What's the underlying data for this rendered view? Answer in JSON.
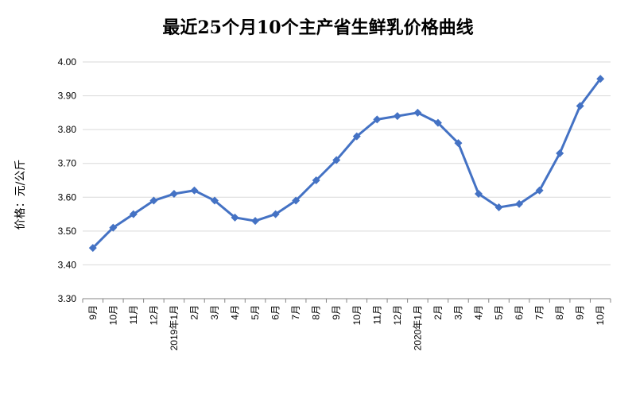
{
  "chart_data": {
    "type": "line",
    "title": "最近25个月10个主产省生鲜乳价格曲线",
    "ylabel": "价格：元/公斤",
    "xlabel": "",
    "ylim": [
      3.3,
      4.0
    ],
    "yticks": [
      "3.30",
      "3.40",
      "3.50",
      "3.60",
      "3.70",
      "3.80",
      "3.90",
      "4.00"
    ],
    "grid": true,
    "categories": [
      "9月",
      "10月",
      "11月",
      "12月",
      "2019年1月",
      "2月",
      "3月",
      "4月",
      "5月",
      "6月",
      "7月",
      "8月",
      "9月",
      "10月",
      "11月",
      "12月",
      "2020年1月",
      "2月",
      "3月",
      "4月",
      "5月",
      "6月",
      "7月",
      "8月",
      "9月",
      "10月"
    ],
    "series": [
      {
        "color": "#4472c4",
        "values": [
          3.45,
          3.51,
          3.55,
          3.59,
          3.61,
          3.62,
          3.59,
          3.54,
          3.53,
          3.55,
          3.59,
          3.65,
          3.71,
          3.78,
          3.83,
          3.84,
          3.85,
          3.82,
          3.76,
          3.61,
          3.57,
          3.58,
          3.62,
          3.73,
          3.87,
          3.95
        ]
      }
    ]
  }
}
